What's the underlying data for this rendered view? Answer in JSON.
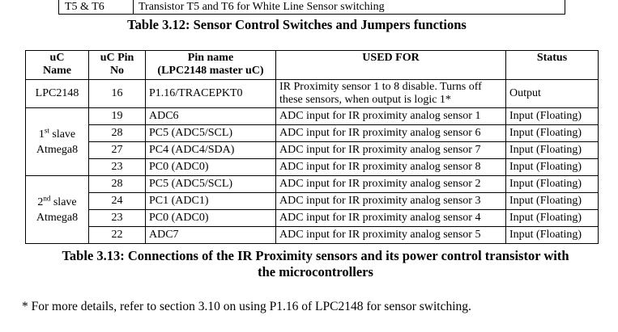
{
  "top_table": {
    "col1": "T5 & T6",
    "col2": "Transistor T5 and T6 for White Line Sensor switching"
  },
  "caption_3_12": "Table 3.12: Sensor Control Switches and Jumpers functions",
  "headers": {
    "uc_name_line1": "uC",
    "uc_name_line2": "Name",
    "pin_no_line1": "uC Pin",
    "pin_no_line2": "No",
    "pin_name_line1": "Pin name",
    "pin_name_line2": "(LPC2148 master uC)",
    "used_for": "USED FOR",
    "status": "Status"
  },
  "lpc": {
    "name": "LPC2148",
    "pin": "16",
    "pin_name": "P1.16/TRACEPKT0",
    "used_line1": "IR Proximity sensor 1 to 8 disable. Turns off",
    "used_line2": "these sensors, when output is logic 1*",
    "status": "Output"
  },
  "slave1": {
    "num": "1",
    "sup": "st",
    "word": " slave",
    "chip": "Atmega8",
    "rows": [
      {
        "pin": "19",
        "pin_name": "ADC6",
        "used": "ADC input for IR proximity analog sensor 1",
        "status": "Input (Floating)"
      },
      {
        "pin": "28",
        "pin_name": "PC5 (ADC5/SCL)",
        "used": "ADC input for IR proximity analog sensor 6",
        "status": "Input (Floating)"
      },
      {
        "pin": "27",
        "pin_name": "PC4 (ADC4/SDA)",
        "used": "ADC input for IR proximity analog sensor 7",
        "status": "Input (Floating)"
      },
      {
        "pin": "23",
        "pin_name": "PC0 (ADC0)",
        "used": "ADC input for IR proximity analog sensor 8",
        "status": "Input (Floating)"
      }
    ]
  },
  "slave2": {
    "num": "2",
    "sup": "nd",
    "word": " slave",
    "chip": "Atmega8",
    "rows": [
      {
        "pin": "28",
        "pin_name": "PC5 (ADC5/SCL)",
        "used": "ADC input for IR proximity analog sensor 2",
        "status": "Input (Floating)"
      },
      {
        "pin": "24",
        "pin_name": "PC1 (ADC1)",
        "used": "ADC input for IR proximity analog sensor 3",
        "status": "Input (Floating)"
      },
      {
        "pin": "23",
        "pin_name": "PC0 (ADC0)",
        "used": "ADC input for IR proximity analog sensor 4",
        "status": "Input (Floating)"
      },
      {
        "pin": "22",
        "pin_name": "ADC7",
        "used": "ADC input for IR proximity analog sensor 5",
        "status": "Input (Floating)"
      }
    ]
  },
  "caption_3_13_line1": "Table 3.13: Connections of the IR Proximity sensors and its power control transistor with",
  "caption_3_13_line2": "the microcontrollers",
  "footnote": "* For more details, refer to section 3.10 on using P1.16 of LPC2148 for sensor switching."
}
